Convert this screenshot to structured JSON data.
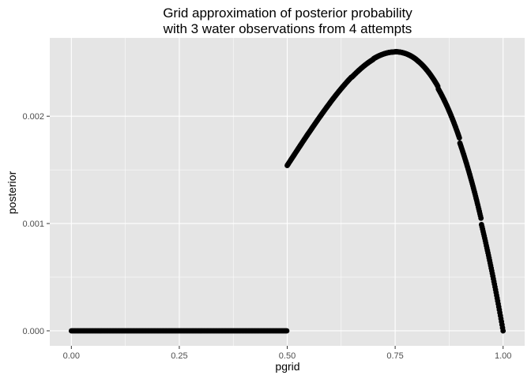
{
  "chart_data": {
    "type": "scatter",
    "title_lines": [
      "Grid approximation of posterior probability",
      "with 3 water observations from 4 attempts"
    ],
    "xlabel": "pgrid",
    "ylabel": "posterior",
    "xlim": [
      -0.05,
      1.05
    ],
    "ylim": [
      -0.00014,
      0.00273
    ],
    "x_ticks": [
      0.0,
      0.25,
      0.5,
      0.75,
      1.0
    ],
    "x_tick_labels": [
      "0.00",
      "0.25",
      "0.50",
      "0.75",
      "1.00"
    ],
    "y_ticks": [
      0.0,
      0.001,
      0.002
    ],
    "y_tick_labels": [
      "0.000",
      "0.001",
      "0.002"
    ],
    "grid": true,
    "panel_background": "#e5e5e5",
    "grid_color": "#ffffff",
    "point_color": "#000000",
    "series": [
      {
        "description": "posterior is 0 for pgrid < 0.5 and proportional to pgrid^3*(1-pgrid) for pgrid >= 0.5; grid of 1000 points",
        "x": [
          0.0,
          0.1,
          0.2,
          0.3,
          0.4,
          0.499,
          0.5,
          0.55,
          0.6,
          0.65,
          0.7,
          0.75,
          0.8,
          0.85,
          0.9,
          0.95,
          1.0
        ],
        "y": [
          0.0,
          0.0,
          0.0,
          0.0,
          0.0,
          0.0,
          0.001541,
          0.001845,
          0.00213,
          0.002365,
          0.002536,
          0.002601,
          0.002524,
          0.002254,
          0.001749,
          0.00099,
          0.0
        ]
      }
    ]
  }
}
